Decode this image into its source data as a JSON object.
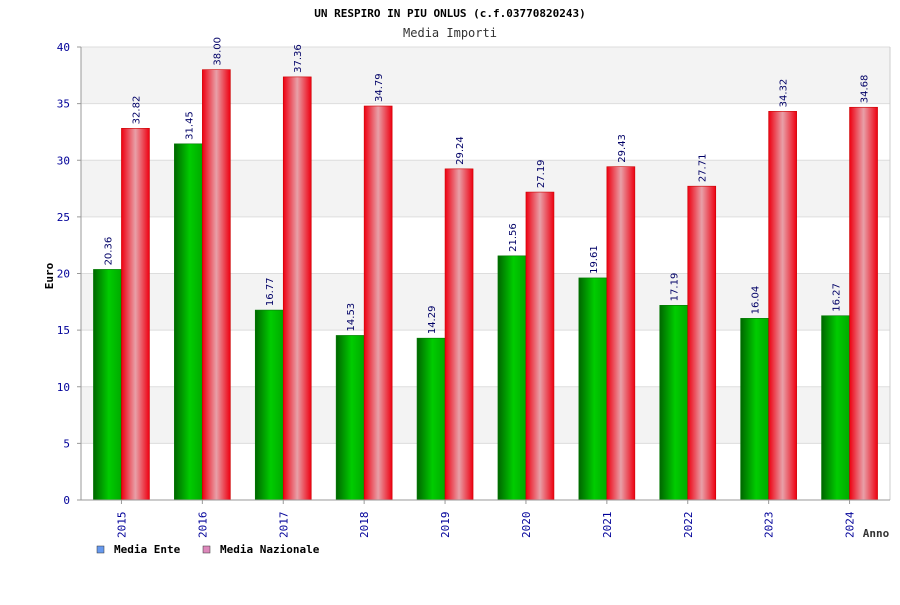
{
  "chart_data": {
    "type": "bar",
    "title": "UN RESPIRO IN PIU ONLUS (c.f.03770820243)",
    "subtitle": "Media Importi",
    "xlabel": "Anno",
    "ylabel": "Euro",
    "ylim": [
      0,
      40
    ],
    "yticks": [
      0,
      5,
      10,
      15,
      20,
      25,
      30,
      35,
      40
    ],
    "grid": true,
    "legend_position": "bottom-left",
    "categories": [
      "2015",
      "2016",
      "2017",
      "2018",
      "2019",
      "2020",
      "2021",
      "2022",
      "2023",
      "2024"
    ],
    "series": [
      {
        "name": "Media Ente",
        "values": [
          20.36,
          31.45,
          16.77,
          14.53,
          14.29,
          21.56,
          19.61,
          17.19,
          16.04,
          16.27
        ],
        "labels": [
          "20.36",
          "31.45",
          "16.77",
          "14.53",
          "14.29",
          "21.56",
          "19.61",
          "17.19",
          "16.04",
          "16.27"
        ],
        "color": "#00aa00",
        "legend_color": "#6699ee"
      },
      {
        "name": "Media Nazionale",
        "values": [
          32.82,
          38.0,
          37.36,
          34.79,
          29.24,
          27.19,
          29.43,
          27.71,
          34.32,
          34.68
        ],
        "labels": [
          "32.82",
          "38.00",
          "37.36",
          "34.79",
          "29.24",
          "27.19",
          "29.43",
          "27.71",
          "34.32",
          "34.68"
        ],
        "color": "#ee0000",
        "legend_color": "#dd88bb"
      }
    ]
  }
}
